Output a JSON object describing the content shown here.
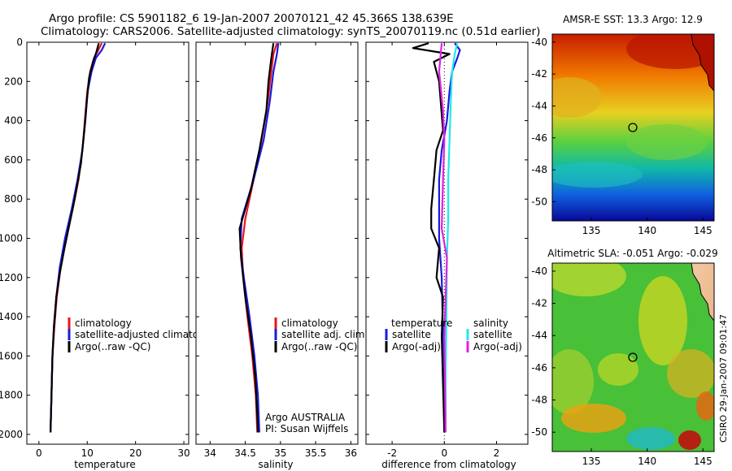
{
  "title_line1": "Argo profile: CS 5901182_6 19-Jan-2007 20070121_42 45.366S 138.639E",
  "title_line2": "Climatology: CARS2006. Satellite-adjusted climatology: synTS_20070119.nc (0.51d earlier)",
  "side_stamp": "CSIRO 29-Jan-2007 09:01:47",
  "colors": {
    "red": "#e8141c",
    "blue": "#1a1ae0",
    "black": "#000000",
    "cyan": "#20e8e8",
    "magenta": "#e020e0"
  },
  "chart_data": [
    {
      "type": "line",
      "name": "temperature",
      "xlabel": "temperature",
      "xlim": [
        -2.5,
        31
      ],
      "xticks": [
        "0",
        "10",
        "20",
        "30"
      ],
      "xtick_values": [
        0,
        10,
        20,
        30
      ],
      "ylim": [
        2050,
        0
      ],
      "yticks": [
        "0",
        "200",
        "400",
        "600",
        "800",
        "1000",
        "1200",
        "1400",
        "1600",
        "1800",
        "2000"
      ],
      "ytick_values": [
        0,
        200,
        400,
        600,
        800,
        1000,
        1200,
        1400,
        1600,
        1800,
        2000
      ],
      "legend": [
        "climatology",
        "satellite-adjusted climatology",
        "Argo(..raw -QC)"
      ],
      "series": [
        {
          "name": "climatology",
          "color": "red",
          "points": [
            [
              13,
              5
            ],
            [
              12.3,
              40
            ],
            [
              11.4,
              80
            ],
            [
              10.6,
              150
            ],
            [
              10,
              250
            ],
            [
              9.5,
              400
            ],
            [
              9,
              550
            ],
            [
              8.2,
              700
            ],
            [
              7,
              850
            ],
            [
              5.6,
              1000
            ],
            [
              4.5,
              1150
            ],
            [
              3.7,
              1300
            ],
            [
              3.2,
              1450
            ],
            [
              2.8,
              1600
            ],
            [
              2.6,
              1800
            ],
            [
              2.4,
              1990
            ]
          ]
        },
        {
          "name": "satellite-adjusted climatology",
          "color": "blue",
          "points": [
            [
              13.7,
              5
            ],
            [
              13,
              40
            ],
            [
              11.8,
              80
            ],
            [
              10.9,
              150
            ],
            [
              10.1,
              250
            ],
            [
              9.6,
              400
            ],
            [
              9,
              550
            ],
            [
              8,
              700
            ],
            [
              6.8,
              850
            ],
            [
              5.4,
              1000
            ],
            [
              4.3,
              1150
            ],
            [
              3.6,
              1300
            ],
            [
              3.1,
              1450
            ],
            [
              2.8,
              1600
            ],
            [
              2.6,
              1800
            ],
            [
              2.4,
              1990
            ]
          ]
        },
        {
          "name": "Argo(..raw -QC)",
          "color": "black",
          "points": [
            [
              12.4,
              5
            ],
            [
              11.9,
              50
            ],
            [
              11.2,
              100
            ],
            [
              10.4,
              180
            ],
            [
              9.9,
              300
            ],
            [
              9.4,
              450
            ],
            [
              8.7,
              620
            ],
            [
              7.4,
              800
            ],
            [
              6.3,
              930
            ],
            [
              5.3,
              1050
            ],
            [
              4.3,
              1180
            ],
            [
              3.6,
              1300
            ],
            [
              3.1,
              1450
            ],
            [
              2.8,
              1600
            ],
            [
              2.6,
              1800
            ],
            [
              2.4,
              1990
            ]
          ]
        }
      ]
    },
    {
      "type": "line",
      "name": "salinity",
      "xlabel": "salinity",
      "xlim": [
        33.8,
        36.1
      ],
      "xticks": [
        "34",
        "34.5",
        "35",
        "35.5",
        "36"
      ],
      "xtick_values": [
        34,
        34.5,
        35,
        35.5,
        36
      ],
      "ylim": [
        2050,
        0
      ],
      "legend": [
        "climatology",
        "satellite adj. clim.",
        "Argo(..raw -QC)"
      ],
      "annotation_line1": "Argo AUSTRALIA",
      "annotation_line2": "PI: Susan Wijffels",
      "series": [
        {
          "name": "climatology",
          "color": "red",
          "points": [
            [
              34.95,
              5
            ],
            [
              34.9,
              60
            ],
            [
              34.87,
              150
            ],
            [
              34.82,
              300
            ],
            [
              34.73,
              500
            ],
            [
              34.62,
              700
            ],
            [
              34.5,
              900
            ],
            [
              34.45,
              1050
            ],
            [
              34.47,
              1200
            ],
            [
              34.53,
              1400
            ],
            [
              34.6,
              1600
            ],
            [
              34.65,
              1800
            ],
            [
              34.67,
              1990
            ]
          ]
        },
        {
          "name": "satellite adj. clim.",
          "color": "blue",
          "points": [
            [
              34.97,
              5
            ],
            [
              34.95,
              60
            ],
            [
              34.9,
              150
            ],
            [
              34.85,
              300
            ],
            [
              34.76,
              500
            ],
            [
              34.62,
              700
            ],
            [
              34.45,
              900
            ],
            [
              34.43,
              1050
            ],
            [
              34.48,
              1200
            ],
            [
              34.56,
              1400
            ],
            [
              34.63,
              1600
            ],
            [
              34.68,
              1800
            ],
            [
              34.7,
              1990
            ]
          ]
        },
        {
          "name": "Argo(..raw -QC)",
          "color": "black",
          "points": [
            [
              34.9,
              5
            ],
            [
              34.87,
              80
            ],
            [
              34.83,
              200
            ],
            [
              34.8,
              350
            ],
            [
              34.7,
              550
            ],
            [
              34.58,
              750
            ],
            [
              34.42,
              950
            ],
            [
              34.44,
              1100
            ],
            [
              34.5,
              1300
            ],
            [
              34.58,
              1500
            ],
            [
              34.64,
              1700
            ],
            [
              34.67,
              1900
            ],
            [
              34.68,
              1990
            ]
          ]
        }
      ]
    },
    {
      "type": "line",
      "name": "difference",
      "xlabel": "difference from climatology",
      "xlim": [
        -3,
        3.2
      ],
      "xticks": [
        "-2",
        "0",
        "2"
      ],
      "xtick_values": [
        -2,
        0,
        2
      ],
      "ylim": [
        2050,
        0
      ],
      "legend_temp_head": "temperature",
      "legend_sal_head": "salinity",
      "legend": [
        "satellite",
        "Argo(-adj)",
        "satellite",
        "Argo(-adj)"
      ],
      "series": [
        {
          "name": "temperature satellite",
          "color": "blue",
          "points": [
            [
              0.4,
              5
            ],
            [
              0.6,
              40
            ],
            [
              0.5,
              80
            ],
            [
              0.3,
              150
            ],
            [
              0.2,
              250
            ],
            [
              0.1,
              400
            ],
            [
              -0.1,
              550
            ],
            [
              -0.2,
              700
            ],
            [
              -0.2,
              850
            ],
            [
              -0.2,
              1000
            ],
            [
              -0.1,
              1200
            ],
            [
              -0.05,
              1500
            ],
            [
              0,
              1990
            ]
          ]
        },
        {
          "name": "temperature Argo(-adj)",
          "color": "black",
          "points": [
            [
              -0.6,
              5
            ],
            [
              -1.2,
              30
            ],
            [
              0.2,
              60
            ],
            [
              -0.4,
              100
            ],
            [
              -0.2,
              200
            ],
            [
              -0.05,
              450
            ],
            [
              -0.3,
              550
            ],
            [
              -0.4,
              700
            ],
            [
              -0.5,
              850
            ],
            [
              -0.5,
              950
            ],
            [
              -0.2,
              1050
            ],
            [
              -0.3,
              1200
            ],
            [
              -0.05,
              1300
            ],
            [
              -0.1,
              1500
            ],
            [
              0,
              1990
            ]
          ]
        },
        {
          "name": "salinity satellite",
          "color": "cyan",
          "points": [
            [
              0.5,
              5
            ],
            [
              0.4,
              60
            ],
            [
              0.3,
              150
            ],
            [
              0.25,
              300
            ],
            [
              0.2,
              500
            ],
            [
              0.15,
              700
            ],
            [
              0.15,
              900
            ],
            [
              0.1,
              1100
            ],
            [
              0.08,
              1400
            ],
            [
              0.05,
              1700
            ],
            [
              0.05,
              1990
            ]
          ]
        },
        {
          "name": "salinity Argo(-adj)",
          "color": "magenta",
          "points": [
            [
              -0.1,
              5
            ],
            [
              -0.2,
              150
            ],
            [
              -0.05,
              350
            ],
            [
              0,
              500
            ],
            [
              -0.05,
              700
            ],
            [
              -0.1,
              950
            ],
            [
              0.1,
              1100
            ],
            [
              0.05,
              1300
            ],
            [
              0,
              1500
            ],
            [
              0.05,
              1990
            ]
          ]
        }
      ]
    },
    {
      "type": "heatmap",
      "name": "sst_map",
      "title": "AMSR-E SST: 13.3 Argo: 12.9",
      "xlim": [
        131.5,
        146
      ],
      "ylim": [
        -51.2,
        -39.5
      ],
      "xticks": [
        "135",
        "140",
        "145"
      ],
      "xtick_values": [
        135,
        140,
        145
      ],
      "yticks": [
        "-40",
        "-42",
        "-44",
        "-46",
        "-48",
        "-50"
      ],
      "ytick_values": [
        -40,
        -42,
        -44,
        -46,
        -48,
        -50
      ],
      "marker": [
        138.639,
        -45.366
      ]
    },
    {
      "type": "heatmap",
      "name": "sla_map",
      "title": "Altimetric SLA: -0.051 Argo: -0.029",
      "xlim": [
        131.5,
        146
      ],
      "ylim": [
        -51.2,
        -39.5
      ],
      "xticks": [
        "135",
        "140",
        "145"
      ],
      "xtick_values": [
        135,
        140,
        145
      ],
      "yticks": [
        "-40",
        "-42",
        "-44",
        "-46",
        "-48",
        "-50"
      ],
      "ytick_values": [
        -40,
        -42,
        -44,
        -46,
        -48,
        -50
      ],
      "marker": [
        138.639,
        -45.366
      ]
    }
  ]
}
